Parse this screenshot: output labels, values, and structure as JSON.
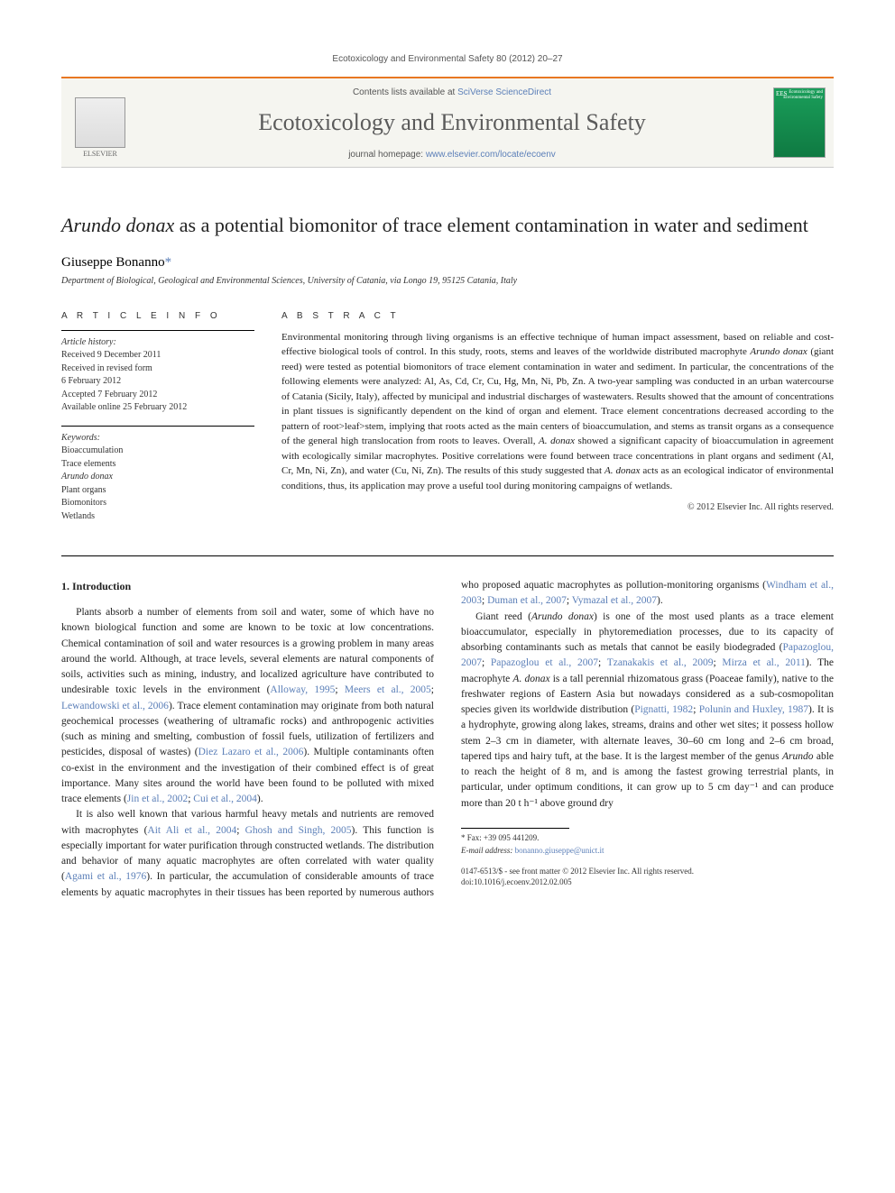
{
  "topBanner": "Ecotoxicology and Environmental Safety 80 (2012) 20–27",
  "header": {
    "contentsPrefix": "Contents lists available at ",
    "contentsLink": "SciVerse ScienceDirect",
    "journalName": "Ecotoxicology and Environmental Safety",
    "homepagePrefix": "journal homepage: ",
    "homepageLink": "www.elsevier.com/locate/ecoenv",
    "publisherLabel": "ELSEVIER",
    "coverTopLeft": "EES",
    "coverTopRight": "Ecotoxicology and Environmental Safety"
  },
  "article": {
    "titlePrefixSpecies": "Arundo donax",
    "titleRest": " as a potential biomonitor of trace element contamination in water and sediment",
    "author": "Giuseppe Bonanno",
    "corrMark": "*",
    "affiliation": "Department of Biological, Geological and Environmental Sciences, University of Catania, via Longo 19, 95125 Catania, Italy"
  },
  "labels": {
    "articleInfo": "A R T I C L E   I N F O",
    "abstract": "A B S T R A C T"
  },
  "history": {
    "hdr": "Article history:",
    "l1": "Received 9 December 2011",
    "l2": "Received in revised form",
    "l3": "6 February 2012",
    "l4": "Accepted 7 February 2012",
    "l5": "Available online 25 February 2012"
  },
  "keywords": {
    "hdr": "Keywords:",
    "k1": "Bioaccumulation",
    "k2": "Trace elements",
    "k3species": "Arundo donax",
    "k4": "Plant organs",
    "k5": "Biomonitors",
    "k6": "Wetlands"
  },
  "abstract": {
    "p1a": "Environmental monitoring through living organisms is an effective technique of human impact assessment, based on reliable and cost-effective biological tools of control. In this study, roots, stems and leaves of the worldwide distributed macrophyte ",
    "p1species": "Arundo donax",
    "p1b": " (giant reed) were tested as potential biomonitors of trace element contamination in water and sediment. In particular, the concentrations of the following elements were analyzed: Al, As, Cd, Cr, Cu, Hg, Mn, Ni, Pb, Zn. A two-year sampling was conducted in an urban watercourse of Catania (Sicily, Italy), affected by municipal and industrial discharges of wastewaters. Results showed that the amount of concentrations in plant tissues is significantly dependent on the kind of organ and element. Trace element concentrations decreased according to the pattern of root>leaf>stem, implying that roots acted as the main centers of bioaccumulation, and stems as transit organs as a consequence of the general high translocation from roots to leaves. Overall, ",
    "p1species2": "A. donax",
    "p1c": " showed a significant capacity of bioaccumulation in agreement with ecologically similar macrophytes. Positive correlations were found between trace concentrations in plant organs and sediment (Al, Cr, Mn, Ni, Zn), and water (Cu, Ni, Zn). The results of this study suggested that ",
    "p1species3": "A. donax",
    "p1d": " acts as an ecological indicator of environmental conditions, thus, its application may prove a useful tool during monitoring campaigns of wetlands."
  },
  "copyright": "© 2012 Elsevier Inc. All rights reserved.",
  "section1": {
    "heading": "1.  Introduction",
    "p1a": "Plants absorb a number of elements from soil and water, some of which have no known biological function and some are known to be toxic at low concentrations. Chemical contamination of soil and water resources is a growing problem in many areas around the world. Although, at trace levels, several elements are natural components of soils, activities such as mining, industry, and localized agriculture have contributed to undesirable toxic levels in the environment (",
    "p1c1": "Alloway, 1995",
    "p1s1": "; ",
    "p1c2": "Meers et al., 2005",
    "p1s2": "; ",
    "p1c3": "Lewandowski et al., 2006",
    "p1b": "). Trace element contamination may originate from both natural geochemical processes (weathering of ultramafic rocks) and anthropogenic activities (such as mining and smelting, combustion of fossil fuels, utilization of fertilizers and pesticides, disposal of wastes) (",
    "p1c4": "Diez Lazaro et al., 2006",
    "p1d": "). Multiple contaminants often co-exist in the environment and the investigation of their combined effect is of great importance. Many sites around the world have been found to be polluted with mixed trace elements (",
    "p1c5": "Jin et al., 2002",
    "p1s3": "; ",
    "p1c6": "Cui et al., 2004",
    "p1e": ").",
    "p2a": "It is also well known that various harmful heavy metals and nutrients are removed with macrophytes (",
    "p2c1": "Ait Ali et al., 2004",
    "p2s1": "; ",
    "p2c2": "Ghosh and Singh, 2005",
    "p2b": "). This function is especially important for water purification through constructed wetlands. The distribution and behavior of many aquatic macrophytes are often correlated with water quality (",
    "p2c3": "Agami et al., 1976",
    "p2c": "). In particular, the accumulation of considerable amounts of trace elements by aquatic macrophytes in their tissues has been reported by numerous authors who proposed aquatic macrophytes as pollution-monitoring organisms (",
    "p2c4": "Windham et al., 2003",
    "p2s2": "; ",
    "p2c5": "Duman et al., 2007",
    "p2s3": "; ",
    "p2c6": "Vymazal et al., 2007",
    "p2d": ").",
    "p3a": "Giant reed (",
    "p3sp1": "Arundo donax",
    "p3b": ") is one of the most used plants as a trace element bioaccumulator, especially in phytoremediation processes, due to its capacity of absorbing contaminants such as metals that cannot be easily biodegraded (",
    "p3c1": "Papazoglou, 2007",
    "p3s1": "; ",
    "p3c2": "Papazoglou et al., 2007",
    "p3s2": "; ",
    "p3c3": "Tzanakakis et al., 2009",
    "p3s3": "; ",
    "p3c4": "Mirza et al., 2011",
    "p3c": "). The macrophyte ",
    "p3sp2": "A. donax",
    "p3d": " is a tall perennial rhizomatous grass (Poaceae family), native to the freshwater regions of Eastern Asia but nowadays considered as a sub-cosmopolitan species given its worldwide distribution (",
    "p3c5": "Pignatti, 1982",
    "p3s4": "; ",
    "p3c6": "Polunin and Huxley, 1987",
    "p3e": "). It is a hydrophyte, growing along lakes, streams, drains and other wet sites; it possess hollow stem 2–3 cm in diameter, with alternate leaves, 30–60 cm long and 2–6 cm broad, tapered tips and hairy tuft, at the base. It is the largest member of the genus ",
    "p3sp3": "Arundo",
    "p3f": " able to reach the height of 8 m, and is among the fastest growing terrestrial plants, in particular, under optimum conditions, it can grow up to 5 cm day⁻¹ and can produce more than 20 t h⁻¹ above ground dry"
  },
  "footnotes": {
    "fax": "* Fax: +39 095 441209.",
    "emailLabel": "E-mail address: ",
    "emailLink": "bonanno.giuseppe@unict.it"
  },
  "bottom": {
    "l1": "0147-6513/$ - see front matter © 2012 Elsevier Inc. All rights reserved.",
    "l2": "doi:10.1016/j.ecoenv.2012.02.005"
  },
  "colors": {
    "accent": "#e87722",
    "link": "#5b7fb8",
    "text": "#222222",
    "muted": "#555555",
    "coverGreenTop": "#1a9e5a",
    "coverGreenBottom": "#0f7a42",
    "background": "#ffffff",
    "headerBg": "#f5f5f0"
  },
  "typography": {
    "bodySizePt": 11.5,
    "abstractSizePt": 11,
    "titleSizePt": 22,
    "journalSizePt": 26,
    "smallSizePt": 10,
    "footnoteSizePt": 9,
    "fontFamily": "Georgia/Times-like serif"
  },
  "layout": {
    "pageWidthPx": 992,
    "pageHeightPx": 1323,
    "bodyColumns": 2,
    "columnGapPx": 30
  }
}
